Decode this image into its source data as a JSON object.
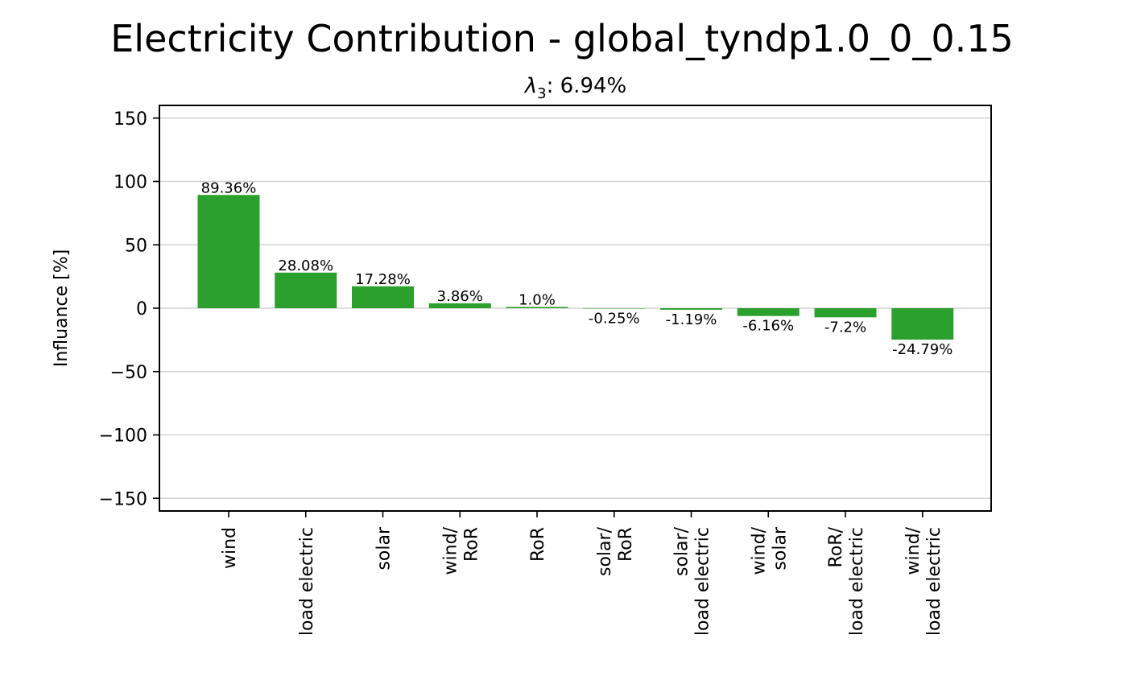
{
  "chart_data": {
    "type": "bar",
    "title": "Electricity Contribution - global_tyndp1.0_0_0.15",
    "subtitle": {
      "symbol": "λ",
      "subscript": "3",
      "value_text": ": 6.94%"
    },
    "xlabel": "",
    "ylabel": "Influance [%]",
    "ylim": [
      -160,
      160
    ],
    "yticks": [
      -150,
      -100,
      -50,
      0,
      50,
      100,
      150
    ],
    "ytick_labels": [
      "−150",
      "−100",
      "−50",
      "0",
      "50",
      "100",
      "150"
    ],
    "grid": "horizontal",
    "bar_color": "#2ca02c",
    "categories": [
      [
        "wind"
      ],
      [
        "load electric"
      ],
      [
        "solar"
      ],
      [
        "wind/",
        "RoR"
      ],
      [
        "RoR"
      ],
      [
        "solar/",
        "RoR"
      ],
      [
        "solar/",
        "load electric"
      ],
      [
        "wind/",
        "solar"
      ],
      [
        "RoR/",
        "load electric"
      ],
      [
        "wind/",
        "load electric"
      ]
    ],
    "values": [
      89.36,
      28.08,
      17.28,
      3.86,
      1.0,
      -0.25,
      -1.19,
      -6.16,
      -7.2,
      -24.79
    ],
    "value_labels": [
      "89.36%",
      "28.08%",
      "17.28%",
      "3.86%",
      "1.0%",
      "-0.25%",
      "-1.19%",
      "-6.16%",
      "-7.2%",
      "-24.79%"
    ]
  }
}
